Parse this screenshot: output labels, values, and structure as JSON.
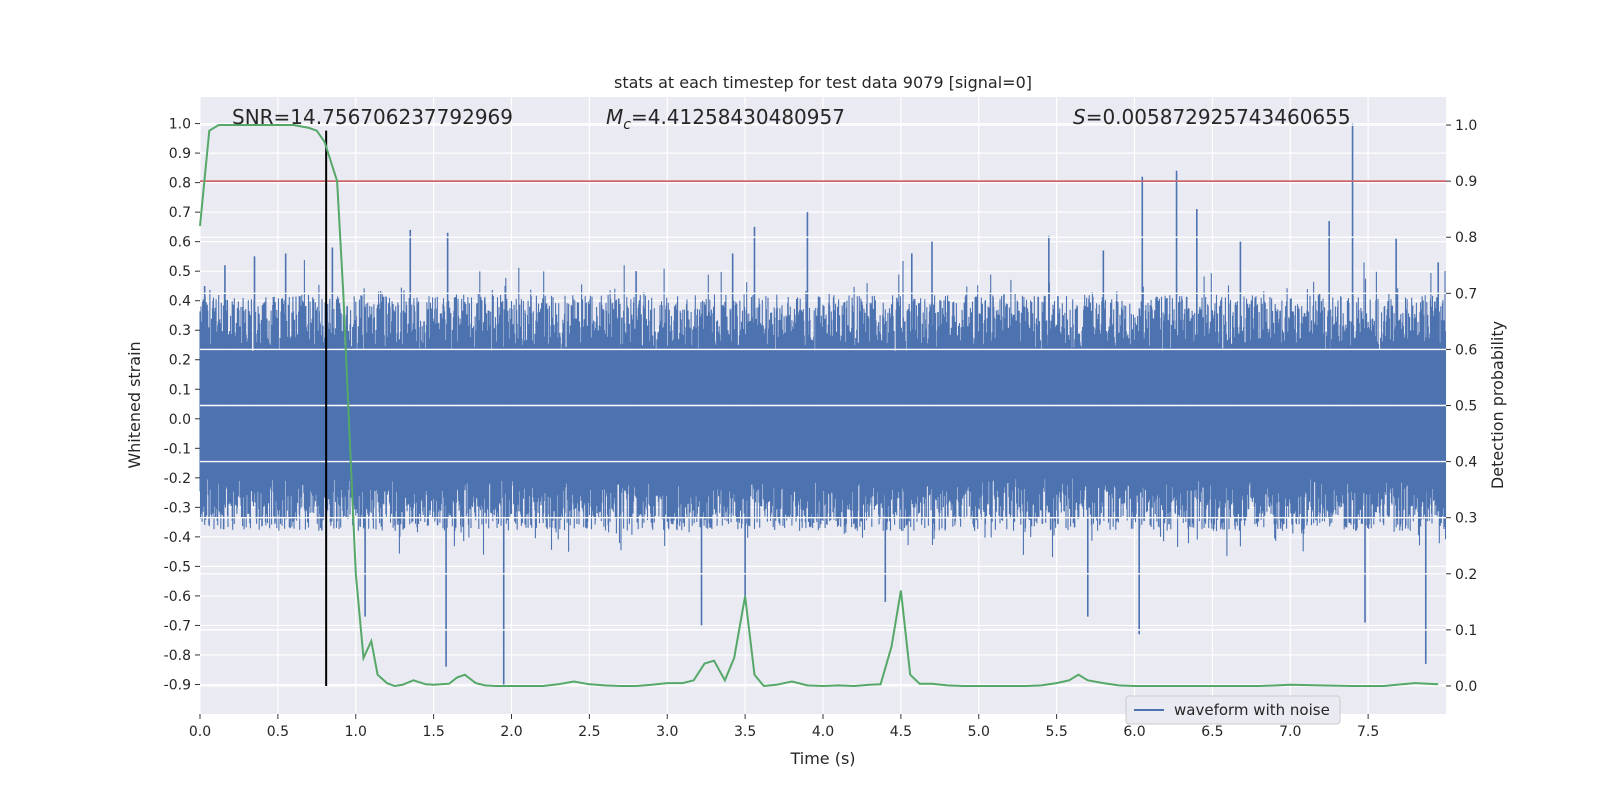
{
  "chart_data": {
    "type": "line",
    "title": "stats at each timestep for test data 9079 [signal=0]",
    "xlabel": "Time (s)",
    "ylabel": "Whitened strain",
    "y2label": "Detection probability",
    "xlim": [
      0.0,
      8.0
    ],
    "ylim": [
      -1.0,
      1.09
    ],
    "y2lim": [
      -0.05,
      1.05
    ],
    "xticks": [
      "0.0",
      "0.5",
      "1.0",
      "1.5",
      "2.0",
      "2.5",
      "3.0",
      "3.5",
      "4.0",
      "4.5",
      "5.0",
      "5.5",
      "6.0",
      "6.5",
      "7.0",
      "7.5"
    ],
    "yticks": [
      "-0.9",
      "-0.8",
      "-0.7",
      "-0.6",
      "-0.5",
      "-0.4",
      "-0.3",
      "-0.2",
      "-0.1",
      "0.0",
      "0.1",
      "0.2",
      "0.3",
      "0.4",
      "0.5",
      "0.6",
      "0.7",
      "0.8",
      "0.9",
      "1.0"
    ],
    "y2ticks": [
      "0.0",
      "0.1",
      "0.2",
      "0.3",
      "0.4",
      "0.5",
      "0.6",
      "0.7",
      "0.8",
      "0.9",
      "1.0"
    ],
    "grid": true,
    "legend": {
      "placement": "lower-right",
      "entries": [
        "waveform with noise"
      ]
    },
    "annotations": {
      "snr": "SNR=14.756706237792969",
      "mc_symbol": "M",
      "mc_sub": "c",
      "mc_value": "=4.41258430480957",
      "s_symbol": "S",
      "s_value": "=0.005872925743460655"
    },
    "threshold_probability": 0.9,
    "marker_time": 0.81,
    "waveform": {
      "name": "waveform with noise",
      "color": "#4c72b0",
      "band": [
        -0.38,
        0.42
      ],
      "spikes": [
        [
          0.03,
          0.45
        ],
        [
          0.16,
          0.52
        ],
        [
          0.35,
          0.55
        ],
        [
          0.55,
          0.56
        ],
        [
          0.85,
          0.58
        ],
        [
          1.06,
          -0.67
        ],
        [
          1.35,
          0.64
        ],
        [
          1.58,
          -0.84
        ],
        [
          1.59,
          0.63
        ],
        [
          1.95,
          -0.9
        ],
        [
          1.96,
          0.45
        ],
        [
          2.8,
          0.5
        ],
        [
          3.22,
          -0.7
        ],
        [
          3.42,
          0.56
        ],
        [
          3.5,
          -0.6
        ],
        [
          3.56,
          0.65
        ],
        [
          3.9,
          0.7
        ],
        [
          4.4,
          -0.62
        ],
        [
          4.57,
          0.56
        ],
        [
          4.7,
          0.6
        ],
        [
          5.45,
          0.62
        ],
        [
          5.7,
          -0.67
        ],
        [
          5.8,
          0.57
        ],
        [
          6.03,
          -0.73
        ],
        [
          6.05,
          0.82
        ],
        [
          6.27,
          0.84
        ],
        [
          6.4,
          0.71
        ],
        [
          6.68,
          0.6
        ],
        [
          7.25,
          0.67
        ],
        [
          7.4,
          1.0
        ],
        [
          7.48,
          -0.69
        ],
        [
          7.68,
          0.61
        ],
        [
          7.87,
          -0.83
        ],
        [
          7.95,
          0.53
        ]
      ]
    },
    "probability": {
      "color": "#55a868",
      "x": [
        0.0,
        0.06,
        0.12,
        0.2,
        0.3,
        0.4,
        0.5,
        0.6,
        0.7,
        0.75,
        0.8,
        0.88,
        0.92,
        0.96,
        1.0,
        1.05,
        1.1,
        1.14,
        1.2,
        1.25,
        1.3,
        1.37,
        1.45,
        1.5,
        1.6,
        1.65,
        1.7,
        1.77,
        1.83,
        1.9,
        2.0,
        2.1,
        2.2,
        2.3,
        2.4,
        2.5,
        2.6,
        2.7,
        2.8,
        2.9,
        3.0,
        3.1,
        3.17,
        3.24,
        3.3,
        3.37,
        3.43,
        3.5,
        3.56,
        3.62,
        3.7,
        3.8,
        3.9,
        4.0,
        4.1,
        4.2,
        4.3,
        4.37,
        4.44,
        4.5,
        4.56,
        4.62,
        4.7,
        4.8,
        4.9,
        5.0,
        5.1,
        5.2,
        5.3,
        5.4,
        5.5,
        5.58,
        5.64,
        5.7,
        5.8,
        5.9,
        6.0,
        6.2,
        6.4,
        6.6,
        6.8,
        7.0,
        7.2,
        7.4,
        7.6,
        7.8,
        7.95
      ],
      "y": [
        0.82,
        0.99,
        1.0,
        1.0,
        1.0,
        1.0,
        1.0,
        1.0,
        0.995,
        0.99,
        0.97,
        0.9,
        0.7,
        0.45,
        0.2,
        0.05,
        0.08,
        0.02,
        0.005,
        0.0,
        0.002,
        0.01,
        0.003,
        0.002,
        0.004,
        0.015,
        0.02,
        0.005,
        0.001,
        0.0,
        0.0,
        0.0,
        0.0,
        0.003,
        0.008,
        0.003,
        0.001,
        0.0,
        0.0,
        0.002,
        0.005,
        0.005,
        0.01,
        0.04,
        0.045,
        0.01,
        0.05,
        0.16,
        0.02,
        0.0,
        0.002,
        0.008,
        0.001,
        0.0,
        0.001,
        0.0,
        0.002,
        0.003,
        0.07,
        0.17,
        0.02,
        0.004,
        0.004,
        0.001,
        0.0,
        0.0,
        0.0,
        0.0,
        0.0,
        0.001,
        0.005,
        0.01,
        0.02,
        0.01,
        0.005,
        0.001,
        0.0,
        0.0,
        0.0,
        0.0,
        0.0,
        0.002,
        0.001,
        0.0,
        0.0,
        0.005,
        0.003
      ]
    }
  }
}
